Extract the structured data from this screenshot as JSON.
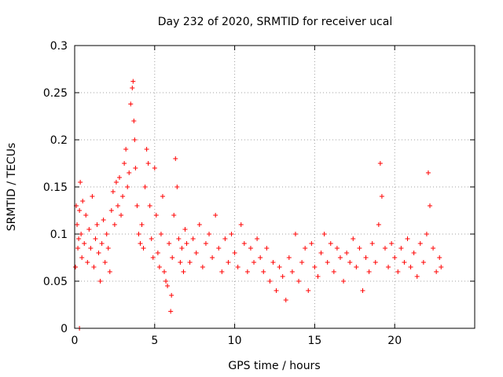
{
  "chart_data": {
    "type": "scatter",
    "title": "Day 232 of 2020, SRMTID for receiver ucal",
    "xlabel": "GPS time / hours",
    "ylabel": "SRMTID / TECUs",
    "xlim": [
      0,
      25
    ],
    "ylim": [
      0,
      0.3
    ],
    "xticks": [
      0,
      5,
      10,
      15,
      20
    ],
    "xtick_labels": [
      "0",
      "5",
      "10",
      "15",
      "20"
    ],
    "yticks": [
      0,
      0.05,
      0.1,
      0.15,
      0.2,
      0.25,
      0.3
    ],
    "ytick_labels": [
      "0",
      "0.05",
      "0.1",
      "0.15",
      "0.2",
      "0.25",
      "0.3"
    ],
    "grid": true,
    "marker": "+",
    "color": "#ff0000",
    "series": [
      {
        "name": "SRMTID",
        "points": [
          [
            0.05,
            0.065
          ],
          [
            0.1,
            0.13
          ],
          [
            0.15,
            0.11
          ],
          [
            0.2,
            0.085
          ],
          [
            0.25,
            0.095
          ],
          [
            0.3,
            0.0
          ],
          [
            0.3,
            0.125
          ],
          [
            0.35,
            0.155
          ],
          [
            0.4,
            0.1
          ],
          [
            0.45,
            0.075
          ],
          [
            0.5,
            0.135
          ],
          [
            0.6,
            0.09
          ],
          [
            0.7,
            0.12
          ],
          [
            0.8,
            0.07
          ],
          [
            0.9,
            0.105
          ],
          [
            1.0,
            0.085
          ],
          [
            1.1,
            0.14
          ],
          [
            1.2,
            0.065
          ],
          [
            1.3,
            0.095
          ],
          [
            1.4,
            0.11
          ],
          [
            1.5,
            0.08
          ],
          [
            1.6,
            0.05
          ],
          [
            1.7,
            0.09
          ],
          [
            1.8,
            0.115
          ],
          [
            1.9,
            0.07
          ],
          [
            2.0,
            0.1
          ],
          [
            2.1,
            0.085
          ],
          [
            2.2,
            0.06
          ],
          [
            2.3,
            0.125
          ],
          [
            2.4,
            0.145
          ],
          [
            2.5,
            0.11
          ],
          [
            2.6,
            0.155
          ],
          [
            2.7,
            0.13
          ],
          [
            2.8,
            0.16
          ],
          [
            2.9,
            0.12
          ],
          [
            3.0,
            0.14
          ],
          [
            3.1,
            0.175
          ],
          [
            3.2,
            0.19
          ],
          [
            3.3,
            0.15
          ],
          [
            3.4,
            0.165
          ],
          [
            3.5,
            0.238
          ],
          [
            3.6,
            0.255
          ],
          [
            3.65,
            0.262
          ],
          [
            3.7,
            0.22
          ],
          [
            3.75,
            0.2
          ],
          [
            3.8,
            0.17
          ],
          [
            3.9,
            0.13
          ],
          [
            4.0,
            0.1
          ],
          [
            4.1,
            0.09
          ],
          [
            4.2,
            0.11
          ],
          [
            4.3,
            0.085
          ],
          [
            4.4,
            0.15
          ],
          [
            4.5,
            0.19
          ],
          [
            4.6,
            0.175
          ],
          [
            4.7,
            0.13
          ],
          [
            4.8,
            0.095
          ],
          [
            4.9,
            0.075
          ],
          [
            5.0,
            0.17
          ],
          [
            5.1,
            0.12
          ],
          [
            5.2,
            0.08
          ],
          [
            5.3,
            0.065
          ],
          [
            5.4,
            0.1
          ],
          [
            5.5,
            0.14
          ],
          [
            5.6,
            0.06
          ],
          [
            5.7,
            0.05
          ],
          [
            5.8,
            0.045
          ],
          [
            5.9,
            0.09
          ],
          [
            6.0,
            0.018
          ],
          [
            6.05,
            0.035
          ],
          [
            6.1,
            0.075
          ],
          [
            6.2,
            0.12
          ],
          [
            6.3,
            0.18
          ],
          [
            6.4,
            0.15
          ],
          [
            6.5,
            0.095
          ],
          [
            6.6,
            0.07
          ],
          [
            6.7,
            0.085
          ],
          [
            6.8,
            0.06
          ],
          [
            6.9,
            0.105
          ],
          [
            7.0,
            0.09
          ],
          [
            7.2,
            0.07
          ],
          [
            7.4,
            0.095
          ],
          [
            7.6,
            0.08
          ],
          [
            7.8,
            0.11
          ],
          [
            8.0,
            0.065
          ],
          [
            8.2,
            0.09
          ],
          [
            8.4,
            0.1
          ],
          [
            8.6,
            0.075
          ],
          [
            8.8,
            0.12
          ],
          [
            9.0,
            0.085
          ],
          [
            9.2,
            0.06
          ],
          [
            9.4,
            0.095
          ],
          [
            9.6,
            0.07
          ],
          [
            9.8,
            0.1
          ],
          [
            10.0,
            0.08
          ],
          [
            10.2,
            0.065
          ],
          [
            10.4,
            0.11
          ],
          [
            10.6,
            0.09
          ],
          [
            10.8,
            0.06
          ],
          [
            11.0,
            0.085
          ],
          [
            11.2,
            0.07
          ],
          [
            11.4,
            0.095
          ],
          [
            11.6,
            0.075
          ],
          [
            11.8,
            0.06
          ],
          [
            12.0,
            0.085
          ],
          [
            12.2,
            0.05
          ],
          [
            12.4,
            0.07
          ],
          [
            12.6,
            0.04
          ],
          [
            12.8,
            0.065
          ],
          [
            13.0,
            0.055
          ],
          [
            13.2,
            0.03
          ],
          [
            13.4,
            0.075
          ],
          [
            13.6,
            0.06
          ],
          [
            13.8,
            0.1
          ],
          [
            14.0,
            0.05
          ],
          [
            14.2,
            0.07
          ],
          [
            14.4,
            0.085
          ],
          [
            14.6,
            0.04
          ],
          [
            14.8,
            0.09
          ],
          [
            15.0,
            0.065
          ],
          [
            15.2,
            0.055
          ],
          [
            15.4,
            0.08
          ],
          [
            15.6,
            0.1
          ],
          [
            15.8,
            0.07
          ],
          [
            16.0,
            0.09
          ],
          [
            16.2,
            0.06
          ],
          [
            16.4,
            0.085
          ],
          [
            16.6,
            0.075
          ],
          [
            16.8,
            0.05
          ],
          [
            17.0,
            0.08
          ],
          [
            17.2,
            0.07
          ],
          [
            17.4,
            0.095
          ],
          [
            17.6,
            0.065
          ],
          [
            17.8,
            0.085
          ],
          [
            18.0,
            0.04
          ],
          [
            18.2,
            0.075
          ],
          [
            18.4,
            0.06
          ],
          [
            18.6,
            0.09
          ],
          [
            18.8,
            0.07
          ],
          [
            19.0,
            0.11
          ],
          [
            19.1,
            0.175
          ],
          [
            19.2,
            0.14
          ],
          [
            19.4,
            0.085
          ],
          [
            19.6,
            0.065
          ],
          [
            19.8,
            0.09
          ],
          [
            20.0,
            0.075
          ],
          [
            20.2,
            0.06
          ],
          [
            20.4,
            0.085
          ],
          [
            20.6,
            0.07
          ],
          [
            20.8,
            0.095
          ],
          [
            21.0,
            0.065
          ],
          [
            21.2,
            0.08
          ],
          [
            21.4,
            0.055
          ],
          [
            21.6,
            0.09
          ],
          [
            21.8,
            0.07
          ],
          [
            22.0,
            0.1
          ],
          [
            22.1,
            0.165
          ],
          [
            22.2,
            0.13
          ],
          [
            22.4,
            0.085
          ],
          [
            22.6,
            0.06
          ],
          [
            22.8,
            0.075
          ],
          [
            22.9,
            0.065
          ]
        ]
      }
    ]
  }
}
